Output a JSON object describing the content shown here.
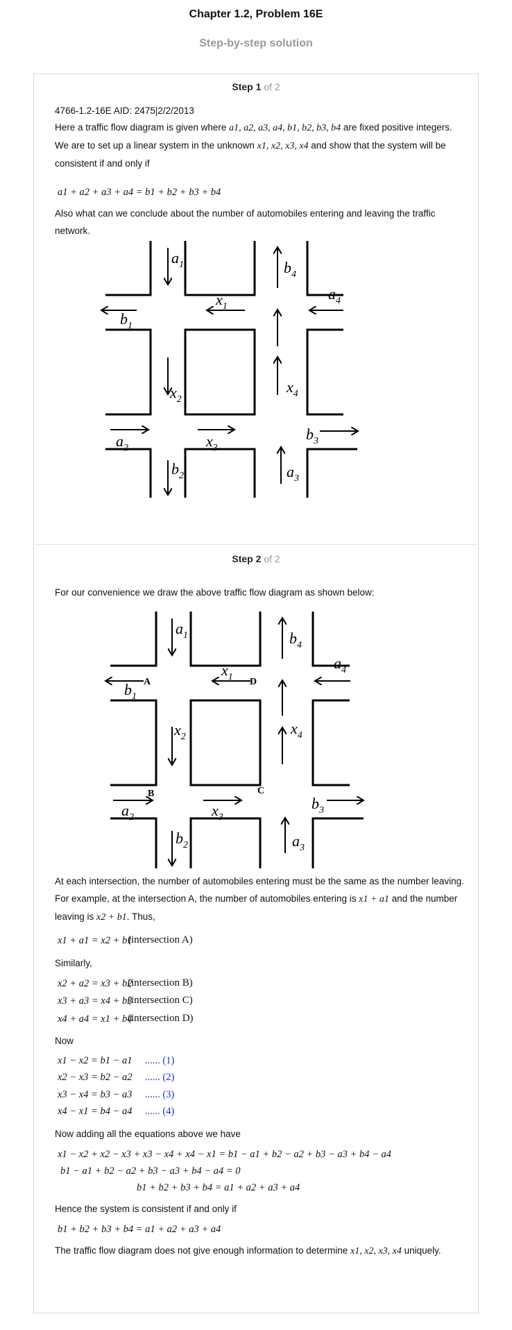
{
  "header": {
    "title": "Chapter 1.2, Problem 16E",
    "subtitle": "Step-by-step solution"
  },
  "step1": {
    "label": "Step 1",
    "of": "of 2",
    "aid": "4766-1.2-16E AID: 2475|2/2/2013",
    "intro_a": "Here a traffic flow diagram is given where",
    "intro_vars": "a1, a2, a3, a4, b1, b2, b3, b4",
    "intro_b": "are fixed positive integers. We are to set up a linear system in the unknown",
    "unknowns": "x1, x2, x3, x4",
    "intro_c": "and show that the system will be consistent if and only if",
    "condition": "a1 + a2 + a3 + a4 = b1 + b2 + b3 + b4",
    "question": "Also what can we conclude about the number of automobiles entering and leaving the traffic network."
  },
  "diagram": {
    "inflow_labels": [
      "a1",
      "a2",
      "a3",
      "a4"
    ],
    "outflow_labels": [
      "b1",
      "b2",
      "b3",
      "b4"
    ],
    "internal_labels": [
      "x1",
      "x2",
      "x3",
      "x4"
    ],
    "intersections": [
      "A",
      "B",
      "C",
      "D"
    ]
  },
  "step2": {
    "label": "Step 2",
    "of": "of 2",
    "intro": "For our convenience we draw the above traffic flow diagram as shown below:",
    "para1_a": "At each intersection, the number of automobiles entering must be the same as the number leaving. For example, at the intersection A, the number of automobiles entering is",
    "para1_enter": "x1 + a1",
    "para1_b": "and the number leaving is",
    "para1_leave": "x2 + b1",
    "para1_c": ". Thus,",
    "eqA": "x1 + a1 = x2 + b1",
    "eqA_note": "(intersection A)",
    "similarly": "Similarly,",
    "eqs_similar": [
      {
        "eq": "x2 + a2 = x3 + b2",
        "note": "(intersection B)"
      },
      {
        "eq": "x3 + a3 = x4 + b3",
        "note": "(intersection C)"
      },
      {
        "eq": "x4 + a4 = x1 + b4",
        "note": "(intersection D)"
      }
    ],
    "now": "Now",
    "eqs_now": [
      {
        "eq": "x1 − x2 = b1 − a1",
        "num": "...... (1)"
      },
      {
        "eq": "x2 − x3 = b2 − a2",
        "num": "...... (2)"
      },
      {
        "eq": "x3 − x4 = b3 − a3",
        "num": "...... (3)"
      },
      {
        "eq": "x4 − x1 = b4 − a4",
        "num": "...... (4)"
      }
    ],
    "adding": "Now adding all the equations above we have",
    "sum1": "x1 − x2 + x2 − x3 + x3 − x4 + x4 − x1 = b1 − a1 + b2 − a2 + b3 − a3 + b4 − a4",
    "sum2": "b1 − a1 + b2 − a2 + b3 − a3 + b4 − a4 = 0",
    "sum3": "b1 + b2 + b3 + b4 = a1 + a2 + a3 + a4",
    "hence": "Hence the system is consistent if and only if",
    "final_eq": "b1 + b2 + b3 + b4 = a1 + a2 + a3 + a4",
    "conclusion": "The traffic flow diagram does not give enough information to determine",
    "conclusion_vars": "x1, x2, x3, x4",
    "conclusion_end": "uniquely."
  }
}
